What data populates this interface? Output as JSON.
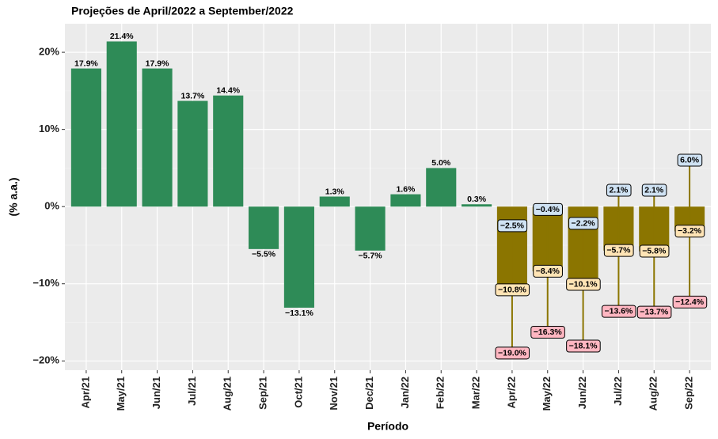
{
  "chart_data": {
    "type": "bar",
    "title": "Projeções de April/2022 a September/2022",
    "x_label": "Período",
    "y_label": "(% a.a.)",
    "categories": [
      "Apr/21",
      "May/21",
      "Jun/21",
      "Jul/21",
      "Aug/21",
      "Sep/21",
      "Oct/21",
      "Nov/21",
      "Dec/21",
      "Jan/22",
      "Feb/22",
      "Mar/22",
      "Apr/22",
      "May/22",
      "Jun/22",
      "Jul/22",
      "Aug/22",
      "Sep/22"
    ],
    "series": [
      {
        "color": "#2e8b57",
        "values": [
          17.9,
          21.4,
          17.9,
          13.7,
          14.4,
          -5.5,
          -13.1,
          1.3,
          -5.7,
          1.6,
          5.0,
          0.3,
          null,
          null,
          null,
          null,
          null,
          null
        ],
        "value_labels": [
          "17.9%",
          "21.4%",
          "17.9%",
          "13.7%",
          "14.4%",
          "−5.5%",
          "−13.1%",
          "1.3%",
          "−5.7%",
          "1.6%",
          "5.0%",
          "0.3%",
          null,
          null,
          null,
          null,
          null,
          null
        ]
      },
      {
        "color": "#8b7500",
        "label_color": "#ffe4b5",
        "values": [
          null,
          null,
          null,
          null,
          null,
          null,
          null,
          null,
          null,
          null,
          null,
          null,
          -10.8,
          -8.4,
          -10.1,
          -5.7,
          -5.8,
          -3.2
        ],
        "value_labels": [
          null,
          null,
          null,
          null,
          null,
          null,
          null,
          null,
          null,
          null,
          null,
          null,
          "−10.8%",
          "−8.4%",
          "−10.1%",
          "−5.7%",
          "−5.8%",
          "−3.2%"
        ],
        "high": [
          null,
          null,
          null,
          null,
          null,
          null,
          null,
          null,
          null,
          null,
          null,
          null,
          -2.5,
          -0.4,
          -2.2,
          2.1,
          2.1,
          6.0
        ],
        "high_labels": [
          null,
          null,
          null,
          null,
          null,
          null,
          null,
          null,
          null,
          null,
          null,
          null,
          "−2.5%",
          "−0.4%",
          "−2.2%",
          "2.1%",
          "2.1%",
          "6.0%"
        ],
        "high_color": "#cfe2f3",
        "low": [
          null,
          null,
          null,
          null,
          null,
          null,
          null,
          null,
          null,
          null,
          null,
          null,
          -19.0,
          -16.3,
          -18.1,
          -13.6,
          -13.7,
          -12.4
        ],
        "low_labels": [
          null,
          null,
          null,
          null,
          null,
          null,
          null,
          null,
          null,
          null,
          null,
          null,
          "−19.0%",
          "−16.3%",
          "−18.1%",
          "−13.6%",
          "−13.7%",
          "−12.4%"
        ],
        "low_color": "#ffb6c1"
      }
    ],
    "ylim": [
      -21.2,
      23.7
    ],
    "yticks": [
      {
        "value": -20,
        "label": "−20%"
      },
      {
        "value": -10,
        "label": "−10%"
      },
      {
        "value": 0,
        "label": "0%"
      },
      {
        "value": 10,
        "label": "10%"
      },
      {
        "value": 20,
        "label": "20%"
      }
    ],
    "grid": true
  }
}
